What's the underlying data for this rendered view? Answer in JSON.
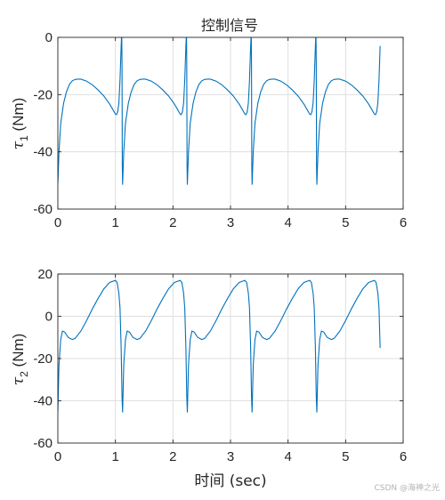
{
  "watermark": "CSDN @海神之光",
  "chart_data": [
    {
      "type": "line",
      "title": "控制信号",
      "xlabel": "",
      "ylabel_symbol": "τ",
      "ylabel_subscript": "1",
      "ylabel_unit": " (Nm)",
      "xlim": [
        0,
        6
      ],
      "ylim": [
        -60,
        0
      ],
      "xticks": [
        0,
        1,
        2,
        3,
        4,
        5,
        6
      ],
      "yticks": [
        -60,
        -40,
        -20,
        0
      ],
      "grid": true,
      "line_color": "#0072bd",
      "period": 1.125,
      "x_end": 5.6,
      "x": [
        0,
        0.02,
        0.05,
        0.1,
        0.15,
        0.2,
        0.25,
        0.3,
        0.35,
        0.4,
        0.5,
        0.6,
        0.7,
        0.8,
        0.9,
        0.95,
        1.0,
        1.02,
        1.04,
        1.06,
        1.08,
        1.1,
        1.11,
        1.115,
        1.118,
        1.12,
        1.125
      ],
      "y": [
        -51,
        -40,
        -30,
        -23,
        -19,
        -16.5,
        -15.2,
        -14.7,
        -14.6,
        -14.6,
        -15.3,
        -16.6,
        -18.4,
        -20.5,
        -23.3,
        -25.0,
        -26.8,
        -27.0,
        -26.0,
        -23.0,
        -15.0,
        -3.0,
        2.0,
        -10.0,
        -30.0,
        -45.0,
        -51.5
      ]
    },
    {
      "type": "line",
      "title": "",
      "xlabel": "时间 (sec)",
      "ylabel_symbol": "τ",
      "ylabel_subscript": "2",
      "ylabel_unit": " (Nm)",
      "xlim": [
        0,
        6
      ],
      "ylim": [
        -60,
        20
      ],
      "xticks": [
        0,
        1,
        2,
        3,
        4,
        5,
        6
      ],
      "yticks": [
        -60,
        -40,
        -20,
        0,
        20
      ],
      "grid": true,
      "line_color": "#0072bd",
      "period": 1.125,
      "x_end": 5.6,
      "x": [
        0,
        0.02,
        0.05,
        0.08,
        0.12,
        0.18,
        0.25,
        0.3,
        0.4,
        0.5,
        0.6,
        0.7,
        0.8,
        0.9,
        1.0,
        1.03,
        1.06,
        1.08,
        1.1,
        1.115,
        1.125
      ],
      "y": [
        -45,
        -23,
        -11,
        -7,
        -7.5,
        -10,
        -11,
        -10.5,
        -7,
        -2,
        3.5,
        8.5,
        13,
        16,
        17,
        16,
        11,
        4,
        -15,
        -38,
        -45.5
      ]
    }
  ]
}
